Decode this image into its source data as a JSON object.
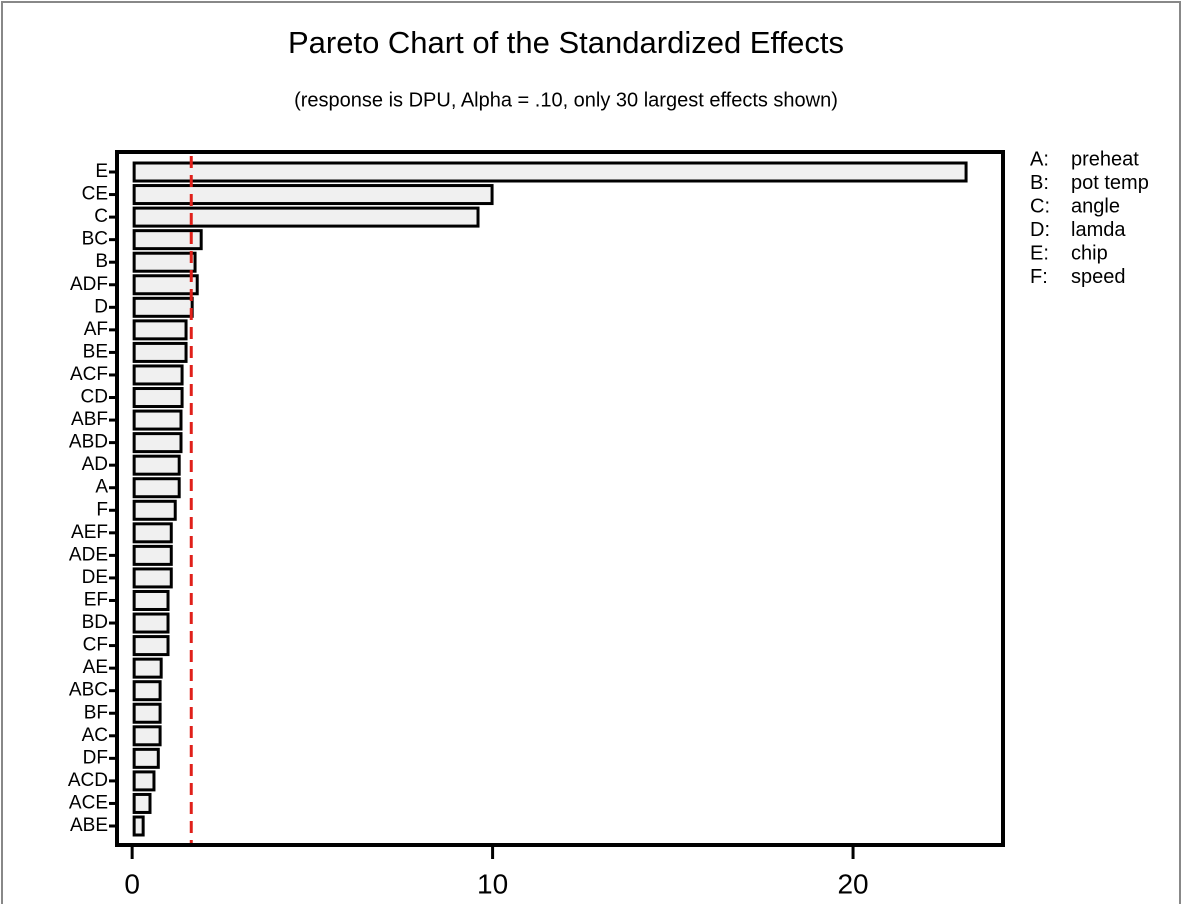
{
  "chart_data": {
    "type": "bar",
    "orientation": "horizontal",
    "title": "Pareto Chart of the Standardized Effects",
    "subtitle": "(response is DPU, Alpha = .10, only 30 largest effects shown)",
    "categories": [
      "E",
      "CE",
      "C",
      "BC",
      "B",
      "ADF",
      "D",
      "AF",
      "BE",
      "ACF",
      "CD",
      "ABF",
      "ABD",
      "AD",
      "A",
      "F",
      "AEF",
      "ADE",
      "DE",
      "EF",
      "BD",
      "CF",
      "AE",
      "ABC",
      "BF",
      "AC",
      "DF",
      "ACD",
      "ACE",
      "ABE"
    ],
    "values": [
      23.08,
      9.93,
      9.54,
      1.86,
      1.69,
      1.75,
      1.61,
      1.44,
      1.44,
      1.33,
      1.33,
      1.3,
      1.3,
      1.25,
      1.25,
      1.14,
      1.03,
      1.03,
      1.03,
      0.94,
      0.94,
      0.94,
      0.75,
      0.72,
      0.72,
      0.72,
      0.67,
      0.55,
      0.44,
      0.25
    ],
    "color": "#f0f0f0",
    "reference_line": 1.64,
    "reference_color": "#e0201a",
    "xlim": [
      -0.42,
      24.16
    ],
    "xticks": [
      0,
      10,
      20
    ],
    "legend": [
      {
        "key": "A:",
        "name": "preheat"
      },
      {
        "key": "B:",
        "name": "pot temp"
      },
      {
        "key": "C:",
        "name": "angle"
      },
      {
        "key": "D:",
        "name": "lamda"
      },
      {
        "key": "E:",
        "name": "chip"
      },
      {
        "key": "F:",
        "name": "speed"
      }
    ]
  }
}
